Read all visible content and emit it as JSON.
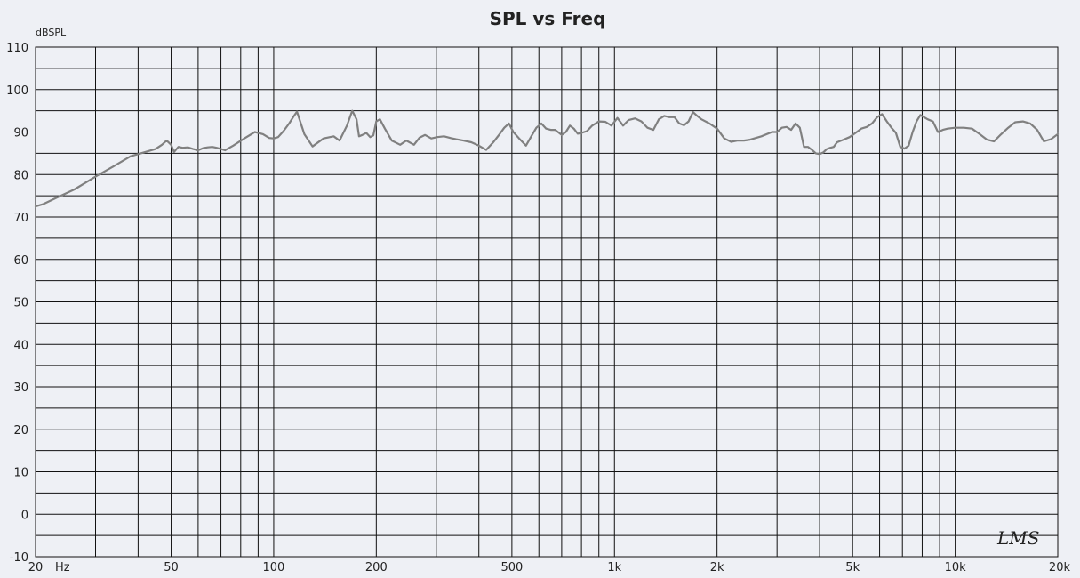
{
  "chart_data": {
    "type": "line",
    "title": "SPL vs Freq",
    "ylabel": "dBSPL",
    "xlabel": "",
    "xscale": "log",
    "xlim": [
      20,
      20000
    ],
    "ylim": [
      -10,
      110
    ],
    "grid": true,
    "x_tick_labels": [
      {
        "value": 20,
        "label": "20"
      },
      {
        "value": 50,
        "label": "50"
      },
      {
        "value": 100,
        "label": "100"
      },
      {
        "value": 200,
        "label": "200"
      },
      {
        "value": 500,
        "label": "500"
      },
      {
        "value": 1000,
        "label": "1k"
      },
      {
        "value": 2000,
        "label": "2k"
      },
      {
        "value": 5000,
        "label": "5k"
      },
      {
        "value": 10000,
        "label": "10k"
      },
      {
        "value": 20000,
        "label": "20k"
      }
    ],
    "x_unit_label": "Hz",
    "y_ticks": [
      110,
      100,
      90,
      80,
      70,
      60,
      50,
      40,
      30,
      20,
      10,
      0,
      -10
    ],
    "series": [
      {
        "color": "#808080",
        "x": [
          20,
          21,
          23,
          26,
          30,
          34,
          38,
          42,
          45,
          47,
          48.5,
          50,
          51,
          52.5,
          54,
          56,
          58,
          60,
          62,
          64,
          66,
          68,
          70,
          72,
          76,
          82,
          88,
          93,
          97,
          100,
          103,
          107,
          111,
          114,
          117,
          123,
          130,
          140,
          150,
          156,
          164,
          170,
          175,
          178,
          182,
          187,
          192,
          196,
          200,
          205,
          212,
          222,
          235,
          245,
          258,
          268,
          278,
          290,
          302,
          316,
          330,
          343,
          360,
          380,
          400,
          420,
          440,
          460,
          475,
          490,
          505,
          525,
          550,
          570,
          590,
          610,
          630,
          650,
          670,
          690,
          700,
          720,
          740,
          760,
          780,
          800,
          830,
          860,
          900,
          940,
          980,
          1020,
          1060,
          1100,
          1150,
          1200,
          1250,
          1300,
          1350,
          1400,
          1450,
          1500,
          1550,
          1600,
          1650,
          1700,
          1750,
          1800,
          1900,
          2000,
          2100,
          2200,
          2300,
          2400,
          2500,
          2700,
          2900,
          3000,
          3100,
          3200,
          3300,
          3400,
          3500,
          3600,
          3700,
          3800,
          3900,
          4000,
          4100,
          4200,
          4300,
          4400,
          4500,
          4700,
          4900,
          5100,
          5300,
          5500,
          5700,
          5900,
          6100,
          6300,
          6500,
          6700,
          6900,
          7100,
          7300,
          7500,
          7700,
          7900,
          8100,
          8300,
          8600,
          8900,
          9200,
          9500,
          10000,
          10600,
          11200,
          11800,
          12400,
          13000,
          13600,
          14300,
          15000,
          15800,
          16600,
          17400,
          18200,
          19100,
          20000
        ],
        "y": [
          72.5,
          73,
          74.5,
          76.5,
          79.5,
          82,
          84.3,
          85.3,
          86,
          87,
          88,
          87,
          85.3,
          86.5,
          86.3,
          86.4,
          86,
          85.7,
          86.2,
          86.4,
          86.5,
          86.3,
          86,
          85.7,
          86.8,
          88.5,
          90,
          89.5,
          88.6,
          88.5,
          88.8,
          90.3,
          92,
          93.5,
          94.8,
          89.5,
          86.6,
          88.5,
          89,
          88,
          91.5,
          95,
          93,
          89,
          89.3,
          89.8,
          88.8,
          89.2,
          92.5,
          93,
          90.8,
          88,
          87,
          88,
          87,
          88.7,
          89.3,
          88.5,
          88.8,
          89,
          88.6,
          88.3,
          88,
          87.6,
          86.8,
          85.8,
          87.5,
          89.5,
          91,
          92,
          90,
          88.5,
          86.8,
          89,
          91,
          92,
          90.8,
          90.5,
          90.5,
          89.7,
          89.3,
          90,
          91.5,
          90.8,
          89.6,
          89.8,
          90.2,
          91.5,
          92.5,
          92.4,
          91.5,
          93.3,
          91.5,
          92.8,
          93.2,
          92.5,
          91,
          90.5,
          93,
          93.8,
          93.5,
          93.5,
          92,
          91.6,
          92.5,
          94.7,
          93.8,
          93,
          92,
          90.8,
          88.5,
          87.7,
          88,
          88,
          88.2,
          89,
          90,
          90,
          91,
          91.2,
          90.5,
          92,
          91,
          86.5,
          86.5,
          85.8,
          85,
          84.8,
          85.2,
          86,
          86.3,
          86.5,
          87.6,
          88.2,
          88.8,
          89.8,
          90.8,
          91.2,
          92,
          93.5,
          94.2,
          92.5,
          91,
          89.8,
          86.5,
          86.1,
          86.8,
          90,
          92.5,
          94,
          93.5,
          93,
          92.5,
          90,
          90.5,
          90.8,
          91,
          91,
          90.8,
          89.5,
          88.2,
          87.8,
          89.4,
          91,
          92.3,
          92.5,
          92,
          90.5,
          87.8,
          88.3,
          89.5
        ]
      }
    ]
  },
  "watermark": "LMS"
}
